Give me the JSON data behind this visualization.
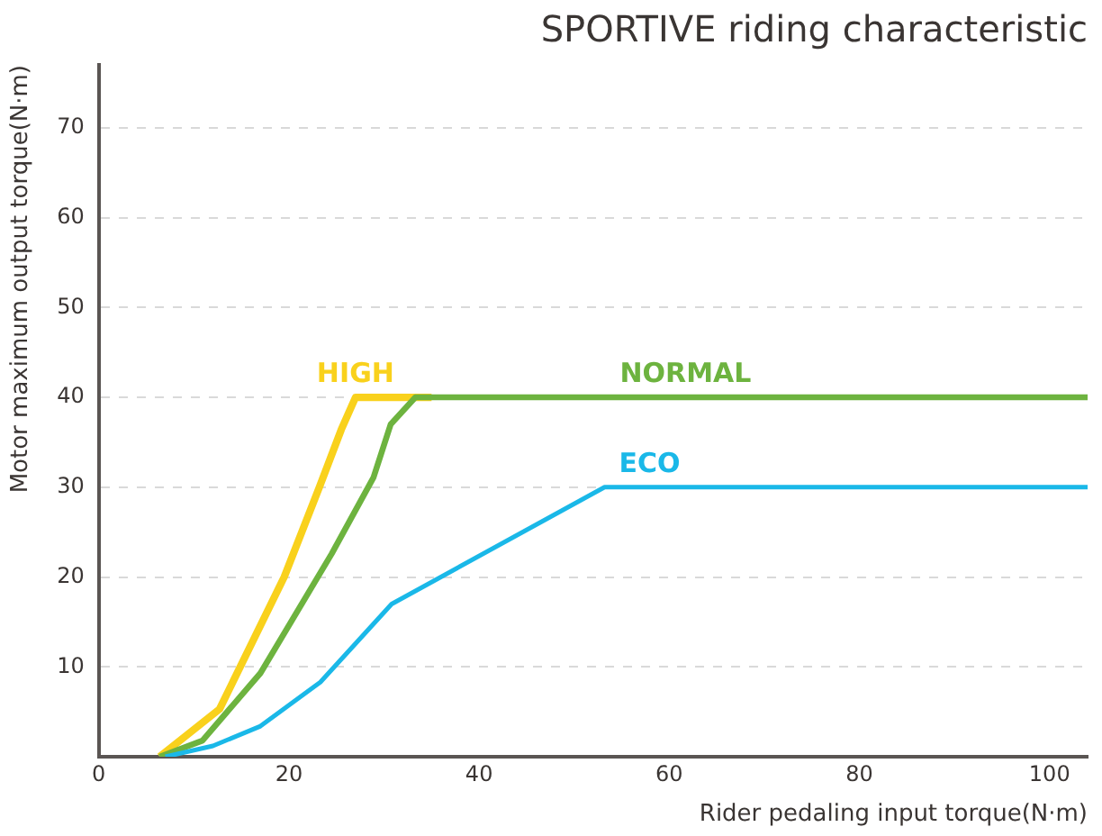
{
  "chart_data": {
    "type": "line",
    "title": "SPORTIVE riding characteristic",
    "xlabel": "Rider pedaling input torque(N·m)",
    "ylabel": "Motor maximum output torque(N·m)",
    "xlim": [
      0,
      104
    ],
    "ylim": [
      0,
      77
    ],
    "xticks": [
      0,
      20,
      40,
      60,
      80,
      100
    ],
    "yticks": [
      10,
      20,
      30,
      40,
      50,
      60,
      70
    ],
    "grid": "y",
    "legend": false,
    "marker": "none",
    "line_style": "solid",
    "series": [
      {
        "name": "HIGH",
        "color": "#f9d11c",
        "x": [
          6.4,
          12.7,
          19.5,
          23.2,
          25.5,
          27,
          35
        ],
        "values": [
          0,
          5.3,
          20,
          30,
          36.4,
          40,
          40
        ]
      },
      {
        "name": "NORMAL",
        "color": "#6db33f",
        "x": [
          6.4,
          10.9,
          17,
          24.5,
          28.9,
          30.7,
          33.3,
          104
        ],
        "values": [
          0,
          1.8,
          9.3,
          22.6,
          31.1,
          37,
          40,
          40
        ]
      },
      {
        "name": "ECO",
        "color": "#1ab8e8",
        "x": [
          7,
          12,
          17,
          23.3,
          30.8,
          53.2,
          104
        ],
        "values": [
          0,
          1.2,
          3.4,
          8.3,
          17,
          30,
          30
        ]
      }
    ]
  }
}
